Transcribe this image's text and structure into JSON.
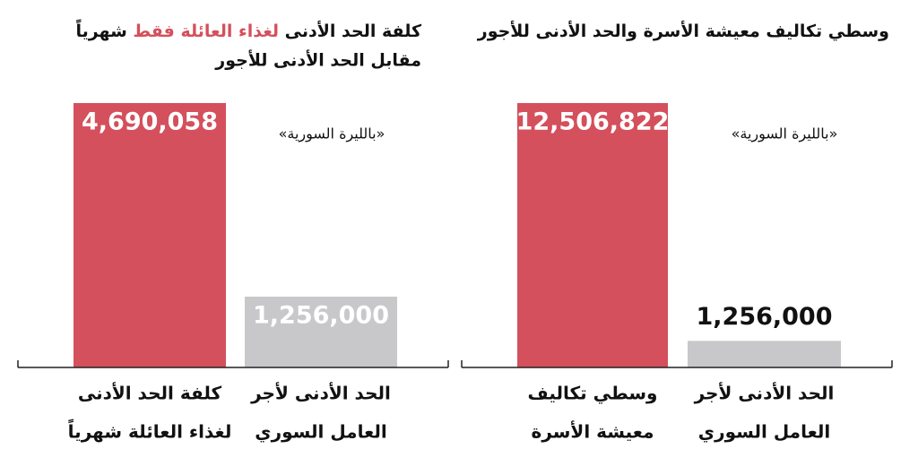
{
  "chart_data": [
    {
      "type": "bar",
      "title": [
        "وسطي تكاليف معيشة الأسرة والحد الأدنى للأجور"
      ],
      "subtitle": "«بالليرة السورية»",
      "categories": [
        [
          "وسطي تكاليف",
          "معيشة الأسرة"
        ],
        [
          "الحد الأدنى لأجر",
          "العامل السوري"
        ]
      ],
      "values": [
        12506822,
        1256000
      ],
      "value_labels": [
        "12,506,822",
        "1,256,000"
      ],
      "colors": [
        "#d4505c",
        "#c8c8ca"
      ]
    },
    {
      "type": "bar",
      "title": [
        "كلفة الحد الأدنى ",
        "لغذاء العائلة فقط",
        " شهرياً",
        "مقابل الحد الأدنى للأجور"
      ],
      "title_highlight_color": "#d4505c",
      "subtitle": "«بالليرة السورية»",
      "categories": [
        [
          "كلفة الحد الأدنى",
          "لغذاء العائلة شهرياً"
        ],
        [
          "الحد الأدنى لأجر",
          "العامل السوري"
        ]
      ],
      "values": [
        4690058,
        1256000
      ],
      "value_labels": [
        "4,690,058",
        "1,256,000"
      ],
      "colors": [
        "#d4505c",
        "#c8c8ca"
      ]
    }
  ]
}
